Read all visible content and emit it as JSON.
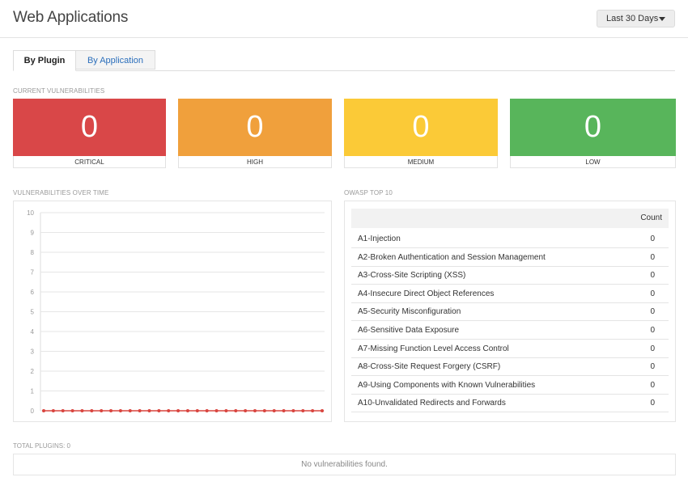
{
  "header": {
    "title": "Web Applications",
    "range_label": "Last 30 Days"
  },
  "tabs": [
    {
      "label": "By Plugin",
      "active": true
    },
    {
      "label": "By Application",
      "active": false
    }
  ],
  "severity": {
    "section_label": "CURRENT VULNERABILITIES",
    "cards": [
      {
        "label": "CRITICAL",
        "count": "0",
        "color": "#d94748"
      },
      {
        "label": "HIGH",
        "count": "0",
        "color": "#f0a03c"
      },
      {
        "label": "MEDIUM",
        "count": "0",
        "color": "#fbca37"
      },
      {
        "label": "LOW",
        "count": "0",
        "color": "#58b55b"
      }
    ]
  },
  "chart_section_label": "VULNERABILITIES OVER TIME",
  "chart_data": {
    "type": "line",
    "title": "VULNERABILITIES OVER TIME",
    "xlabel": "",
    "ylabel": "",
    "ylim": [
      0,
      10
    ],
    "yticks": [
      "0",
      "1",
      "2",
      "3",
      "4",
      "5",
      "6",
      "7",
      "8",
      "9",
      "10"
    ],
    "grid": true,
    "series": [
      {
        "color": "#d9453f",
        "values": [
          0,
          0,
          0,
          0,
          0,
          0,
          0,
          0,
          0,
          0,
          0,
          0,
          0,
          0,
          0,
          0,
          0,
          0,
          0,
          0,
          0,
          0,
          0,
          0,
          0,
          0,
          0,
          0,
          0,
          0
        ]
      }
    ]
  },
  "owasp": {
    "section_label": "OWASP TOP 10",
    "count_header": "Count",
    "rows": [
      {
        "name": "A1-Injection",
        "count": "0"
      },
      {
        "name": "A2-Broken Authentication and Session Management",
        "count": "0"
      },
      {
        "name": "A3-Cross-Site Scripting (XSS)",
        "count": "0"
      },
      {
        "name": "A4-Insecure Direct Object References",
        "count": "0"
      },
      {
        "name": "A5-Security Misconfiguration",
        "count": "0"
      },
      {
        "name": "A6-Sensitive Data Exposure",
        "count": "0"
      },
      {
        "name": "A7-Missing Function Level Access Control",
        "count": "0"
      },
      {
        "name": "A8-Cross-Site Request Forgery (CSRF)",
        "count": "0"
      },
      {
        "name": "A9-Using Components with Known Vulnerabilities",
        "count": "0"
      },
      {
        "name": "A10-Unvalidated Redirects and Forwards",
        "count": "0"
      }
    ]
  },
  "plugins": {
    "total_label": "TOTAL PLUGINS: 0",
    "empty_message": "No vulnerabilities found."
  },
  "icons": {
    "range_caret": "caret-down-icon"
  }
}
